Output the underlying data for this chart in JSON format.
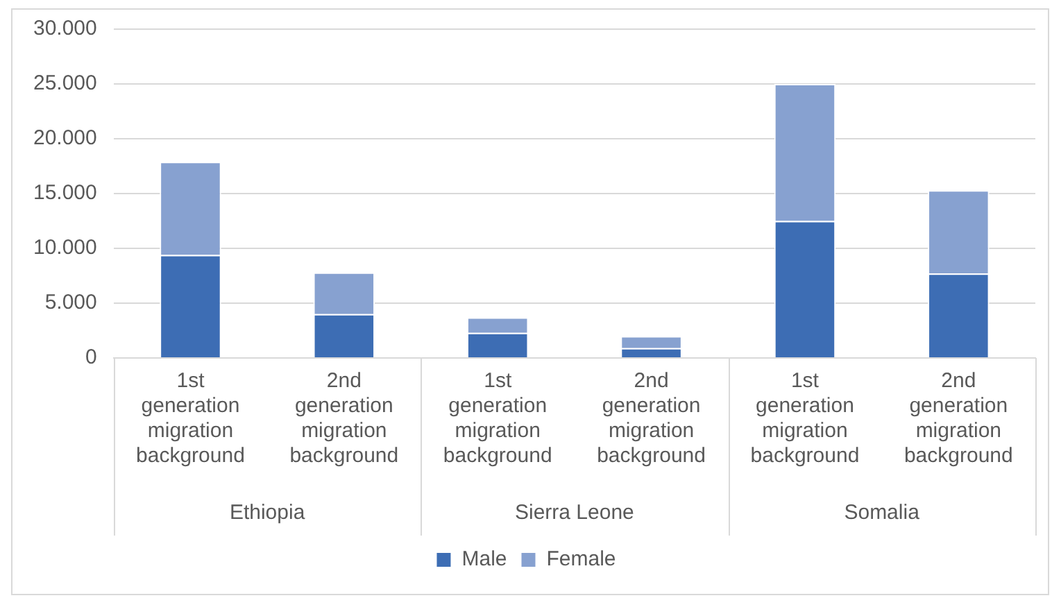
{
  "chart_data": {
    "type": "bar",
    "stacked": true,
    "categories": [
      "1st generation migration background",
      "2nd generation migration background",
      "1st generation migration background",
      "2nd generation migration background",
      "1st generation migration background",
      "2nd generation migration background"
    ],
    "annotations": [
      "Ethiopia",
      "Sierra Leone",
      "Somalia"
    ],
    "series": [
      {
        "name": "Male",
        "color": "#3d6db4",
        "values": [
          9400,
          4000,
          2300,
          900,
          12500,
          7700
        ]
      },
      {
        "name": "Female",
        "color": "#87a1d0",
        "values": [
          8500,
          3800,
          1400,
          1100,
          12500,
          7600
        ]
      }
    ],
    "ylim": [
      0,
      30000
    ],
    "yticks": [
      0,
      {
        "value": 5000,
        "label": "5.000"
      },
      {
        "value": 10000,
        "label": "10.000"
      },
      {
        "value": 15000,
        "label": "15.000"
      },
      {
        "value": 20000,
        "label": "20.000"
      },
      {
        "value": 25000,
        "label": "25.000"
      },
      {
        "value": 30000,
        "label": "30.000"
      }
    ],
    "grid": "y",
    "legend": "bottom"
  }
}
